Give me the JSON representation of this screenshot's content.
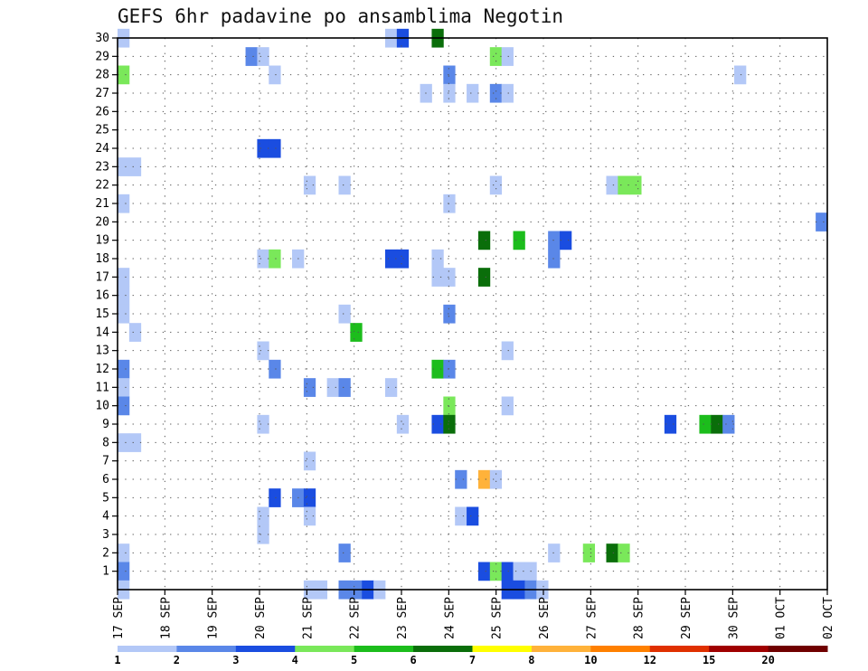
{
  "title": "GEFS 6hr padavine po ansamblima Negotin",
  "chart_data": {
    "type": "heatmap",
    "title": "GEFS 6hr padavine po ansamblima Negotin",
    "y_ticks": [
      1,
      2,
      3,
      4,
      5,
      6,
      7,
      8,
      9,
      10,
      11,
      12,
      13,
      14,
      15,
      16,
      17,
      18,
      19,
      20,
      21,
      22,
      23,
      24,
      25,
      26,
      27,
      28,
      29,
      30
    ],
    "ylim": [
      0,
      30
    ],
    "x_ticks": [
      "17 SEP",
      "18 SEP",
      "19 SEP",
      "20 SEP",
      "21 SEP",
      "22 SEP",
      "23 SEP",
      "24 SEP",
      "25 SEP",
      "26 SEP",
      "27 SEP",
      "28 SEP",
      "29 SEP",
      "30 SEP",
      "01 OCT",
      "02 OCT"
    ],
    "x_time_steps": 61,
    "grid": true,
    "colorbar": {
      "colors": [
        "#b3c8f7",
        "#5a87e8",
        "#1a4de0",
        "#7ae85a",
        "#1cbd1c",
        "#0a6e0a",
        "#ffff00",
        "#ffb23a",
        "#ff8000",
        "#e03000",
        "#a00000",
        "#700000"
      ],
      "labels": [
        "1",
        "2",
        "3",
        "4",
        "5",
        "6",
        "7",
        "8",
        "10",
        "12",
        "15",
        "20"
      ]
    },
    "cells": [
      [
        0,
        30,
        1
      ],
      [
        0,
        28,
        4
      ],
      [
        0,
        23,
        1
      ],
      [
        1,
        23,
        1
      ],
      [
        0,
        21,
        1
      ],
      [
        0,
        17,
        1
      ],
      [
        0,
        16,
        1
      ],
      [
        0,
        15,
        1
      ],
      [
        1,
        14,
        1
      ],
      [
        0,
        12,
        2
      ],
      [
        0,
        11,
        1
      ],
      [
        0,
        10,
        2
      ],
      [
        0,
        8,
        1
      ],
      [
        1,
        8,
        1
      ],
      [
        0,
        2,
        1
      ],
      [
        0,
        1,
        2
      ],
      [
        0,
        0,
        1
      ],
      [
        11,
        29,
        2
      ],
      [
        12,
        29,
        1
      ],
      [
        13,
        28,
        1
      ],
      [
        12,
        24,
        3
      ],
      [
        13,
        24,
        3
      ],
      [
        12,
        18,
        1
      ],
      [
        13,
        18,
        4
      ],
      [
        15,
        18,
        1
      ],
      [
        12,
        13,
        1
      ],
      [
        13,
        12,
        2
      ],
      [
        12,
        9,
        1
      ],
      [
        13,
        5,
        3
      ],
      [
        12,
        4,
        1
      ],
      [
        12,
        3,
        1
      ],
      [
        16,
        22,
        1
      ],
      [
        16,
        11,
        2
      ],
      [
        16,
        7,
        1
      ],
      [
        15,
        5,
        2
      ],
      [
        16,
        5,
        3
      ],
      [
        16,
        4,
        1
      ],
      [
        16,
        0,
        1
      ],
      [
        17,
        0,
        1
      ],
      [
        19,
        22,
        1
      ],
      [
        19,
        15,
        1
      ],
      [
        20,
        14,
        5
      ],
      [
        18,
        11,
        1
      ],
      [
        19,
        11,
        2
      ],
      [
        19,
        2,
        2
      ],
      [
        19,
        0,
        2
      ],
      [
        20,
        0,
        2
      ],
      [
        21,
        0,
        3
      ],
      [
        22,
        0,
        1
      ],
      [
        23,
        30,
        1
      ],
      [
        24,
        30,
        3
      ],
      [
        23,
        18,
        3
      ],
      [
        24,
        18,
        3
      ],
      [
        23,
        11,
        1
      ],
      [
        24,
        9,
        1
      ],
      [
        27,
        30,
        6
      ],
      [
        26,
        27,
        1
      ],
      [
        27,
        18,
        1
      ],
      [
        27,
        17,
        1
      ],
      [
        28,
        17,
        1
      ],
      [
        27,
        12,
        5
      ],
      [
        28,
        12,
        2
      ],
      [
        28,
        10,
        4
      ],
      [
        27,
        9,
        3
      ],
      [
        28,
        9,
        6
      ],
      [
        28,
        28,
        2
      ],
      [
        28,
        27,
        1
      ],
      [
        28,
        21,
        1
      ],
      [
        28,
        15,
        2
      ],
      [
        29,
        6,
        2
      ],
      [
        29,
        4,
        1
      ],
      [
        30,
        4,
        3
      ],
      [
        30,
        27,
        1
      ],
      [
        32,
        29,
        4
      ],
      [
        33,
        29,
        1
      ],
      [
        32,
        27,
        2
      ],
      [
        33,
        27,
        1
      ],
      [
        32,
        22,
        1
      ],
      [
        31,
        19,
        6
      ],
      [
        31,
        17,
        6
      ],
      [
        33,
        13,
        1
      ],
      [
        33,
        10,
        1
      ],
      [
        31,
        6,
        8
      ],
      [
        32,
        6,
        1
      ],
      [
        31,
        1,
        3
      ],
      [
        32,
        1,
        4
      ],
      [
        33,
        1,
        3
      ],
      [
        34,
        1,
        1
      ],
      [
        35,
        1,
        1
      ],
      [
        33,
        0,
        3
      ],
      [
        34,
        0,
        3
      ],
      [
        35,
        0,
        2
      ],
      [
        36,
        0,
        1
      ],
      [
        34,
        19,
        5
      ],
      [
        37,
        19,
        2
      ],
      [
        38,
        19,
        3
      ],
      [
        37,
        18,
        2
      ],
      [
        37,
        2,
        1
      ],
      [
        40,
        2,
        4
      ],
      [
        42,
        2,
        6
      ],
      [
        43,
        2,
        4
      ],
      [
        42,
        22,
        1
      ],
      [
        43,
        22,
        4
      ],
      [
        44,
        22,
        4
      ],
      [
        47,
        9,
        3
      ],
      [
        50,
        9,
        5
      ],
      [
        51,
        9,
        6
      ],
      [
        52,
        9,
        2
      ],
      [
        53,
        28,
        1
      ],
      [
        60,
        20,
        2
      ]
    ]
  }
}
